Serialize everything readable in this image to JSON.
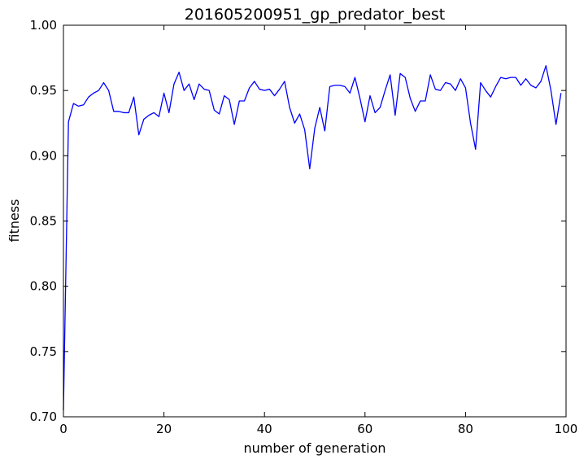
{
  "chart_data": {
    "type": "line",
    "title": "201605200951_gp_predator_best",
    "xlabel": "number of generation",
    "ylabel": "fitness",
    "xlim": [
      0,
      100
    ],
    "ylim": [
      0.7,
      1.0
    ],
    "xticks": [
      0,
      20,
      40,
      60,
      80,
      100
    ],
    "xtick_labels": [
      "0",
      "20",
      "40",
      "60",
      "80",
      "100"
    ],
    "yticks": [
      0.7,
      0.75,
      0.8,
      0.85,
      0.9,
      0.95,
      1.0
    ],
    "ytick_labels": [
      "0.70",
      "0.75",
      "0.80",
      "0.85",
      "0.90",
      "0.95",
      "1.00"
    ],
    "grid": false,
    "line_color": "#0000ff",
    "series": [
      {
        "x": [
          0,
          1,
          2,
          3,
          4,
          5,
          6,
          7,
          8,
          9,
          10,
          11,
          12,
          13,
          14,
          15,
          16,
          17,
          18,
          19,
          20,
          21,
          22,
          23,
          24,
          25,
          26,
          27,
          28,
          29,
          30,
          31,
          32,
          33,
          34,
          35,
          36,
          37,
          38,
          39,
          40,
          41,
          42,
          43,
          44,
          45,
          46,
          47,
          48,
          49,
          50,
          51,
          52,
          53,
          54,
          55,
          56,
          57,
          58,
          59,
          60,
          61,
          62,
          63,
          64,
          65,
          66,
          67,
          68,
          69,
          70,
          71,
          72,
          73,
          74,
          75,
          76,
          77,
          78,
          79,
          80,
          81,
          82,
          83,
          84,
          85,
          86,
          87,
          88,
          89,
          90,
          91,
          92,
          93,
          94,
          95,
          96,
          97,
          98,
          99
        ],
        "values": [
          0.705,
          0.926,
          0.94,
          0.938,
          0.939,
          0.945,
          0.948,
          0.95,
          0.956,
          0.95,
          0.934,
          0.934,
          0.933,
          0.933,
          0.945,
          0.916,
          0.928,
          0.931,
          0.933,
          0.93,
          0.948,
          0.933,
          0.955,
          0.964,
          0.95,
          0.955,
          0.943,
          0.955,
          0.951,
          0.95,
          0.935,
          0.932,
          0.946,
          0.943,
          0.924,
          0.942,
          0.942,
          0.952,
          0.957,
          0.951,
          0.95,
          0.951,
          0.946,
          0.951,
          0.957,
          0.937,
          0.925,
          0.932,
          0.92,
          0.89,
          0.921,
          0.937,
          0.919,
          0.953,
          0.954,
          0.954,
          0.953,
          0.948,
          0.96,
          0.944,
          0.926,
          0.946,
          0.933,
          0.937,
          0.95,
          0.962,
          0.931,
          0.963,
          0.96,
          0.944,
          0.934,
          0.942,
          0.942,
          0.962,
          0.951,
          0.95,
          0.956,
          0.955,
          0.95,
          0.959,
          0.952,
          0.925,
          0.905,
          0.956,
          0.95,
          0.945,
          0.953,
          0.96,
          0.959,
          0.96,
          0.96,
          0.954,
          0.959,
          0.954,
          0.952,
          0.957,
          0.969,
          0.95,
          0.924,
          0.948
        ]
      }
    ]
  }
}
